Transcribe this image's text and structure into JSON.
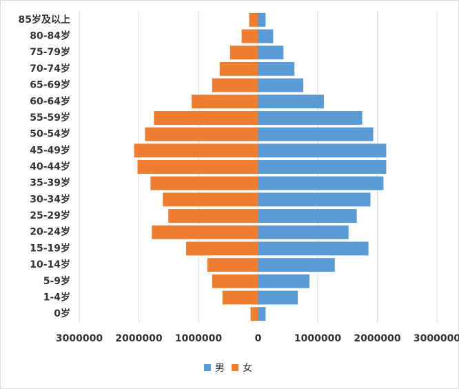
{
  "chart_data": {
    "type": "pyramid",
    "categories": [
      "0岁",
      "1-4岁",
      "5-9岁",
      "10-14岁",
      "15-19岁",
      "20-24岁",
      "25-29岁",
      "30-34岁",
      "35-39岁",
      "40-44岁",
      "45-49岁",
      "50-54岁",
      "55-59岁",
      "60-64岁",
      "65-69岁",
      "70-74岁",
      "75-79岁",
      "80-84岁",
      "85岁及以上"
    ],
    "series": [
      {
        "name": "男",
        "color": "#5b9bd5",
        "values": [
          126000,
          667000,
          862000,
          1287000,
          1851000,
          1517000,
          1655000,
          1885000,
          2103000,
          2149000,
          2149000,
          1931000,
          1747000,
          1103000,
          759000,
          609000,
          425000,
          253000,
          126000
        ]
      },
      {
        "name": "女",
        "color": "#ed7d31",
        "values": [
          -127000,
          -598000,
          -770000,
          -851000,
          -1207000,
          -1782000,
          -1506000,
          -1598000,
          -1805000,
          -2023000,
          -2080000,
          -1897000,
          -1747000,
          -1115000,
          -770000,
          -644000,
          -471000,
          -276000,
          -149000
        ]
      }
    ],
    "xlim": [
      -3000000,
      3000000
    ],
    "xticks": [
      {
        "value": -3000000,
        "label": "3000000"
      },
      {
        "value": -2000000,
        "label": "2000000"
      },
      {
        "value": -1000000,
        "label": "1000000"
      },
      0,
      1000000,
      2000000,
      3000000
    ],
    "grid": true,
    "legend": "bottom"
  }
}
